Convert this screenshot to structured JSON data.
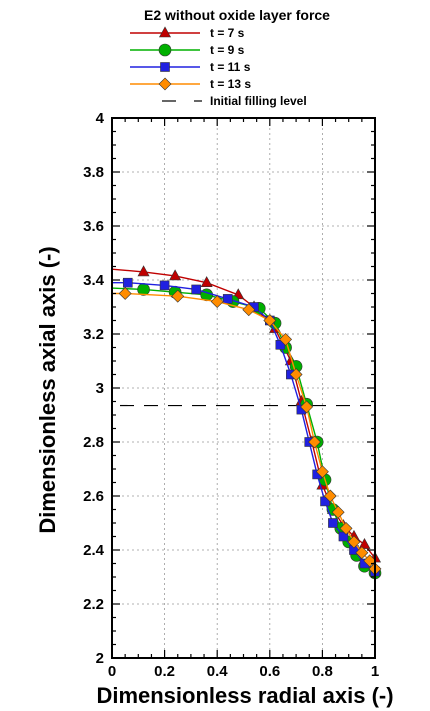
{
  "chart_data": {
    "type": "line",
    "title": "E2 without oxide layer force",
    "xlabel": "Dimensionless radial axis (-)",
    "ylabel": "Dimensionless axial axis (-)",
    "xlim": [
      0,
      1
    ],
    "ylim": [
      2,
      4
    ],
    "x_ticks": [
      0,
      0.2,
      0.4,
      0.6,
      0.8,
      1
    ],
    "x_tick_labels": [
      "0",
      "0.2",
      "0.4",
      "0.6",
      "0.8",
      "1"
    ],
    "y_ticks": [
      2,
      2.2,
      2.4,
      2.6,
      2.8,
      3,
      3.2,
      3.4,
      3.6,
      3.8,
      4
    ],
    "y_tick_labels": [
      "2",
      "2.2",
      "2.4",
      "2.6",
      "2.8",
      "3",
      "3.2",
      "3.4",
      "3.6",
      "3.8",
      "4"
    ],
    "grid": true,
    "legend_position": "top",
    "reference_line": {
      "name": "Initial filling level",
      "y": 2.935,
      "style": "dashed",
      "color": "#000000"
    },
    "series": [
      {
        "name": "t = 7 s",
        "color": "#c00000",
        "marker": "triangle",
        "x": [
          0,
          0.12,
          0.24,
          0.36,
          0.48,
          0.54,
          0.62,
          0.68,
          0.72,
          0.76,
          0.8,
          0.84,
          0.88,
          0.92,
          0.96,
          1.0
        ],
        "y": [
          3.44,
          3.43,
          3.415,
          3.39,
          3.345,
          3.3,
          3.22,
          3.1,
          2.95,
          2.8,
          2.64,
          2.55,
          2.49,
          2.45,
          2.42,
          2.37
        ]
      },
      {
        "name": "t = 9 s",
        "color": "#00b000",
        "marker": "circle",
        "x": [
          0,
          0.12,
          0.24,
          0.36,
          0.46,
          0.56,
          0.62,
          0.66,
          0.7,
          0.74,
          0.78,
          0.81,
          0.84,
          0.87,
          0.9,
          0.93,
          0.96,
          1.0
        ],
        "y": [
          3.37,
          3.365,
          3.355,
          3.345,
          3.32,
          3.295,
          3.24,
          3.15,
          3.08,
          2.94,
          2.8,
          2.66,
          2.55,
          2.48,
          2.43,
          2.38,
          2.34,
          2.315
        ]
      },
      {
        "name": "t = 11 s",
        "color": "#2020e0",
        "marker": "square",
        "x": [
          0,
          0.06,
          0.2,
          0.32,
          0.44,
          0.54,
          0.6,
          0.64,
          0.68,
          0.72,
          0.75,
          0.78,
          0.81,
          0.84,
          0.88,
          0.92,
          0.96,
          1.0
        ],
        "y": [
          3.39,
          3.39,
          3.38,
          3.365,
          3.33,
          3.3,
          3.25,
          3.16,
          3.05,
          2.92,
          2.8,
          2.68,
          2.58,
          2.5,
          2.45,
          2.4,
          2.35,
          2.32
        ]
      },
      {
        "name": "t = 13 s",
        "color": "#ff8c00",
        "marker": "diamond",
        "x": [
          0,
          0.05,
          0.25,
          0.4,
          0.52,
          0.6,
          0.66,
          0.7,
          0.74,
          0.77,
          0.8,
          0.83,
          0.86,
          0.89,
          0.92,
          0.95,
          0.98,
          1.0
        ],
        "y": [
          3.35,
          3.35,
          3.34,
          3.32,
          3.29,
          3.25,
          3.18,
          3.05,
          2.93,
          2.8,
          2.69,
          2.6,
          2.54,
          2.48,
          2.43,
          2.39,
          2.36,
          2.33
        ]
      }
    ]
  }
}
